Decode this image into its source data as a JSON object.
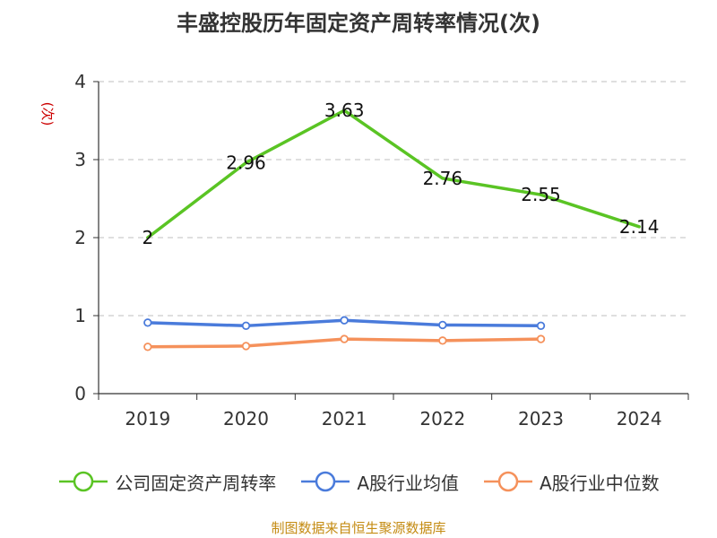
{
  "chart_data": {
    "type": "line",
    "title": "丰盛控股历年固定资产周转率情况(次)",
    "ylabel": "(次)",
    "xlabel": "",
    "categories": [
      "2019",
      "2020",
      "2021",
      "2022",
      "2023",
      "2024"
    ],
    "ylim": [
      0,
      4
    ],
    "yticks": [
      0,
      1,
      2,
      3,
      4
    ],
    "grid": true,
    "legend_position": "bottom",
    "series": [
      {
        "name": "公司固定资产周转率",
        "color": "#5ac424",
        "values": [
          2,
          2.96,
          3.63,
          2.76,
          2.55,
          2.14
        ],
        "data_labels": [
          "2",
          "2.96",
          "3.63",
          "2.76",
          "2.55",
          "2.14"
        ],
        "markers": false
      },
      {
        "name": "A股行业均值",
        "color": "#4a7bdb",
        "values": [
          0.91,
          0.87,
          0.94,
          0.88,
          0.87,
          null
        ],
        "markers": true
      },
      {
        "name": "A股行业中位数",
        "color": "#f5915b",
        "values": [
          0.6,
          0.61,
          0.7,
          0.68,
          0.7,
          null
        ],
        "markers": true
      }
    ],
    "source": "制图数据来自恒生聚源数据库"
  }
}
